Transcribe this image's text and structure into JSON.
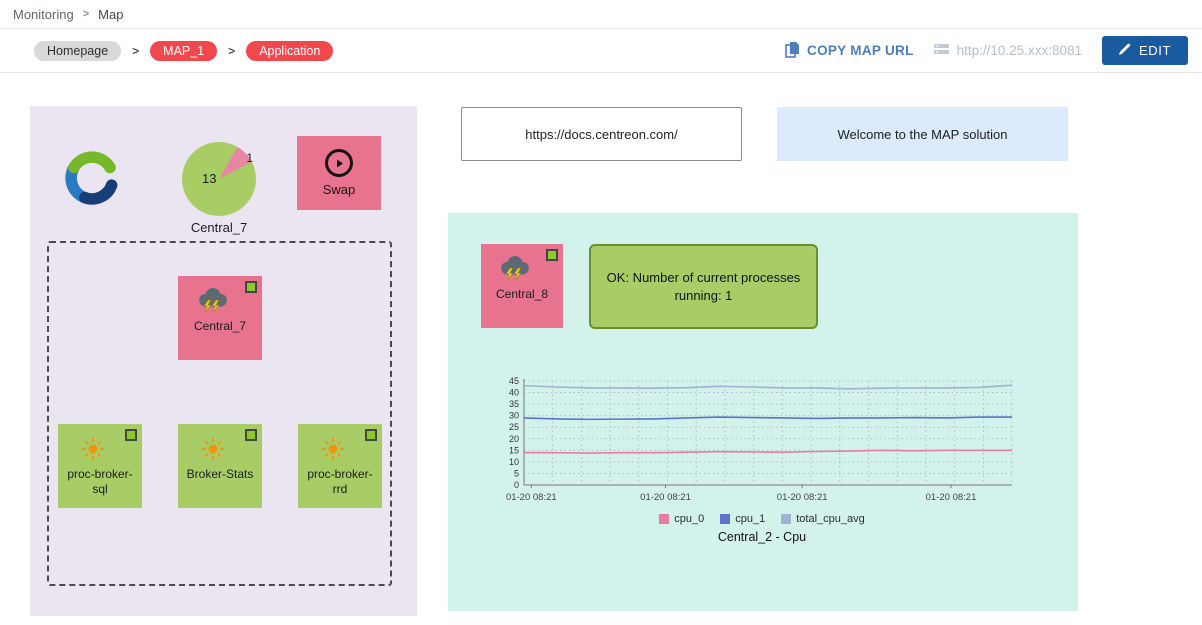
{
  "topbar": {
    "breadcrumb_monitoring": "Monitoring",
    "breadcrumb_map": "Map"
  },
  "toolbar": {
    "path": [
      {
        "label": "Homepage"
      },
      {
        "label": "MAP_1"
      },
      {
        "label": "Application"
      }
    ],
    "copy_map_url_label": "COPY MAP URL",
    "server_url": "http://10.25.xxx:8081",
    "edit_label": "EDIT"
  },
  "icons": {
    "chevron_separator": ">",
    "copy": "copy-pages",
    "server": "server-rows",
    "pencil": "edit-pencil",
    "storm": "cloud-with-lightning",
    "sun": "sun-rays",
    "play": "circle-play"
  },
  "canvas": {
    "doc_link": "https://docs.centreon.com/",
    "welcome_text": "Welcome to the MAP solution",
    "left_panel": {
      "pie": {
        "main_value": "13",
        "slice_value": "1",
        "label": "Central_7"
      },
      "swap_label": "Swap",
      "central7_label": "Central_7",
      "services": [
        {
          "label": "proc-broker-sql"
        },
        {
          "label": "Broker-Stats"
        },
        {
          "label": "proc-broker-rrd"
        }
      ]
    },
    "right_panel": {
      "central8_label": "Central_8",
      "status_text": "OK: Number of current processes running: 1"
    }
  },
  "chart_data": {
    "type": "line",
    "title": "Central_2 - Cpu",
    "ylim": [
      0,
      45
    ],
    "yticks": [
      0,
      5,
      10,
      15,
      20,
      25,
      30,
      35,
      40,
      45
    ],
    "x_tick_labels": [
      "01-20 08:21",
      "01-20 08:21",
      "01-20 08:21",
      "01-20 08:21"
    ],
    "x_tick_positions": [
      0.015,
      0.29,
      0.57,
      0.875
    ],
    "grid": true,
    "legend_position": "bottom",
    "series": [
      {
        "name": "cpu_0",
        "color": "#e87da2",
        "values": [
          14,
          14,
          13.8,
          14,
          14,
          14.2,
          14.4,
          14.3,
          14.2,
          14.5,
          14.7,
          15,
          14.8,
          15,
          15,
          15
        ]
      },
      {
        "name": "cpu_1",
        "color": "#5b74c9",
        "values": [
          29,
          28.6,
          28.4,
          28.5,
          28.6,
          29,
          29.4,
          29.2,
          29,
          28.8,
          29,
          29,
          29.2,
          29,
          29.4,
          29.4
        ]
      },
      {
        "name": "total_cpu_avg",
        "color": "#9db3d1",
        "values": [
          43,
          42.4,
          42,
          42,
          41.9,
          42.1,
          42.7,
          42.4,
          42,
          42,
          41.6,
          41.9,
          42,
          42,
          42.2,
          43.2
        ]
      }
    ]
  },
  "colors": {
    "critical_pink": "#e8738f",
    "ok_green": "#a9cd66",
    "status_square_green": "#8fc928",
    "pill_red": "#f0484d",
    "pill_grey": "#d9d9d9",
    "accent_blue": "#1a5a9e",
    "link_blue": "#4a7fbe",
    "panel_purple": "#ebe5f2",
    "panel_cyan": "#d3f2ec",
    "welcome_blue": "#dbeafc"
  }
}
